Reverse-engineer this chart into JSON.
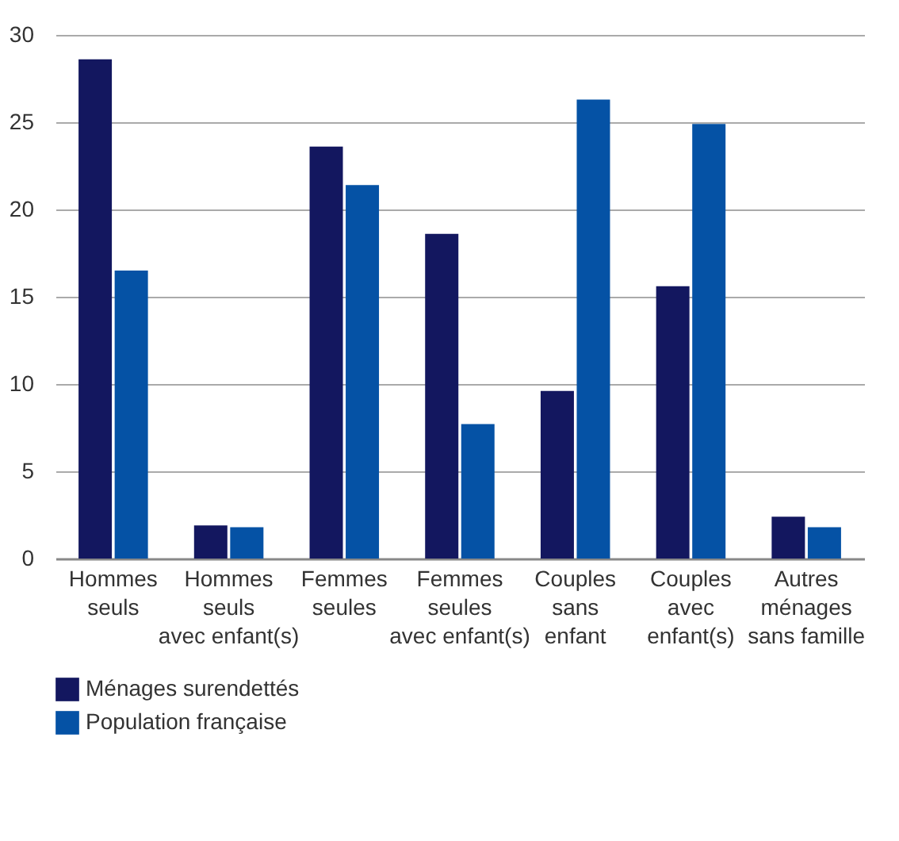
{
  "chart_data": {
    "type": "bar",
    "categories": [
      "Hommes\nseuls",
      "Hommes\nseuls\navec enfant(s)",
      "Femmes\nseules",
      "Femmes\nseules\navec enfant(s)",
      "Couples\nsans\nenfant",
      "Couples\navec\nenfant(s)",
      "Autres\nménages\nsans famille"
    ],
    "series": [
      {
        "name": "Ménages surendettés",
        "color": "#13175f",
        "values": [
          28.6,
          1.9,
          23.6,
          18.6,
          9.6,
          15.6,
          2.4
        ]
      },
      {
        "name": "Population française",
        "color": "#0552a5",
        "values": [
          16.5,
          1.8,
          21.4,
          7.7,
          26.3,
          24.9,
          1.8
        ]
      }
    ],
    "ylim": [
      0,
      30
    ],
    "yticks": [
      0,
      5,
      10,
      15,
      20,
      25,
      30
    ],
    "grid": "y",
    "legend": "bottom left"
  }
}
